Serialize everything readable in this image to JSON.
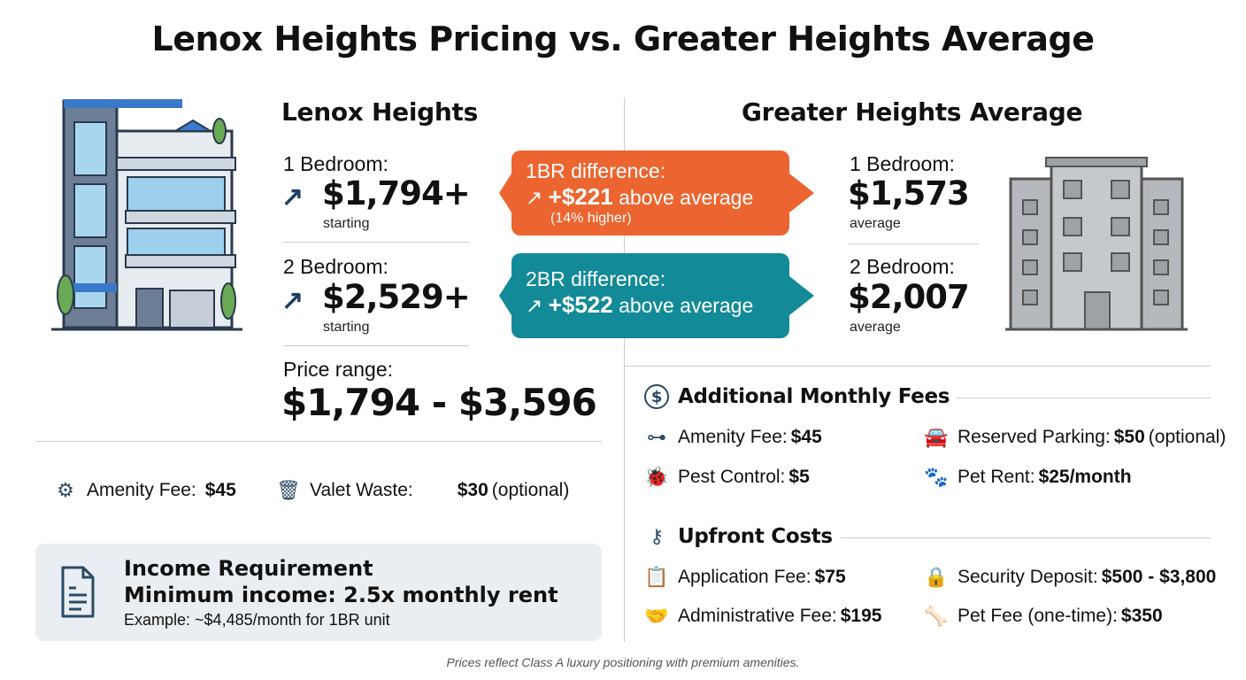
{
  "title": "Lenox Heights Pricing vs. Greater Heights Average",
  "lenox": {
    "heading": "Lenox Heights",
    "br1_label": "1 Bedroom:",
    "br1_price": "$1,794+",
    "br1_note": "starting",
    "br2_label": "2 Bedroom:",
    "br2_price": "$2,529+",
    "br2_note": "starting",
    "range_label": "Price range:",
    "range_value": "$1,794 - $3,596"
  },
  "callouts": [
    {
      "label": "1BR difference:",
      "amount": "+$221",
      "suffix": "above average",
      "note": "(14% higher)",
      "color": "#ec6530"
    },
    {
      "label": "2BR difference:",
      "amount": "+$522",
      "suffix": "above average",
      "color": "#138a98"
    }
  ],
  "avg": {
    "heading": "Greater Heights Average",
    "br1_label": "1 Bedroom:",
    "br1_price": "$1,573",
    "br1_note": "average",
    "br2_label": "2 Bedroom:",
    "br2_price": "$2,007",
    "br2_note": "average"
  },
  "lenox_fees": [
    {
      "label": "Amenity Fee:",
      "value": "$45",
      "icon": "gym-icon"
    },
    {
      "label": "Valet Waste:",
      "value": "$30",
      "note": "(optional)",
      "icon": "trash-icon"
    }
  ],
  "income": {
    "title": "Income Requirement",
    "rule": "Minimum income: 2.5x monthly rent",
    "example": "Example: ~$4,485/month for 1BR unit"
  },
  "monthly": {
    "heading": "Additional Monthly Fees",
    "items": [
      {
        "label": "Amenity Fee:",
        "value": "$45"
      },
      {
        "label": "Reserved Parking:",
        "value": "$50",
        "note": "(optional)"
      },
      {
        "label": "Pest Control:",
        "value": "$5"
      },
      {
        "label": "Pet Rent:",
        "value": "$25/month"
      }
    ]
  },
  "upfront": {
    "heading": "Upfront Costs",
    "items": [
      {
        "label": "Application Fee:",
        "value": "$75"
      },
      {
        "label": "Security Deposit:",
        "value": "$500 - $3,800"
      },
      {
        "label": "Administrative Fee:",
        "value": "$195"
      },
      {
        "label": "Pet Fee (one-time):",
        "value": "$350"
      }
    ]
  },
  "footer": "Prices reflect Class A luxury positioning with premium amenities."
}
